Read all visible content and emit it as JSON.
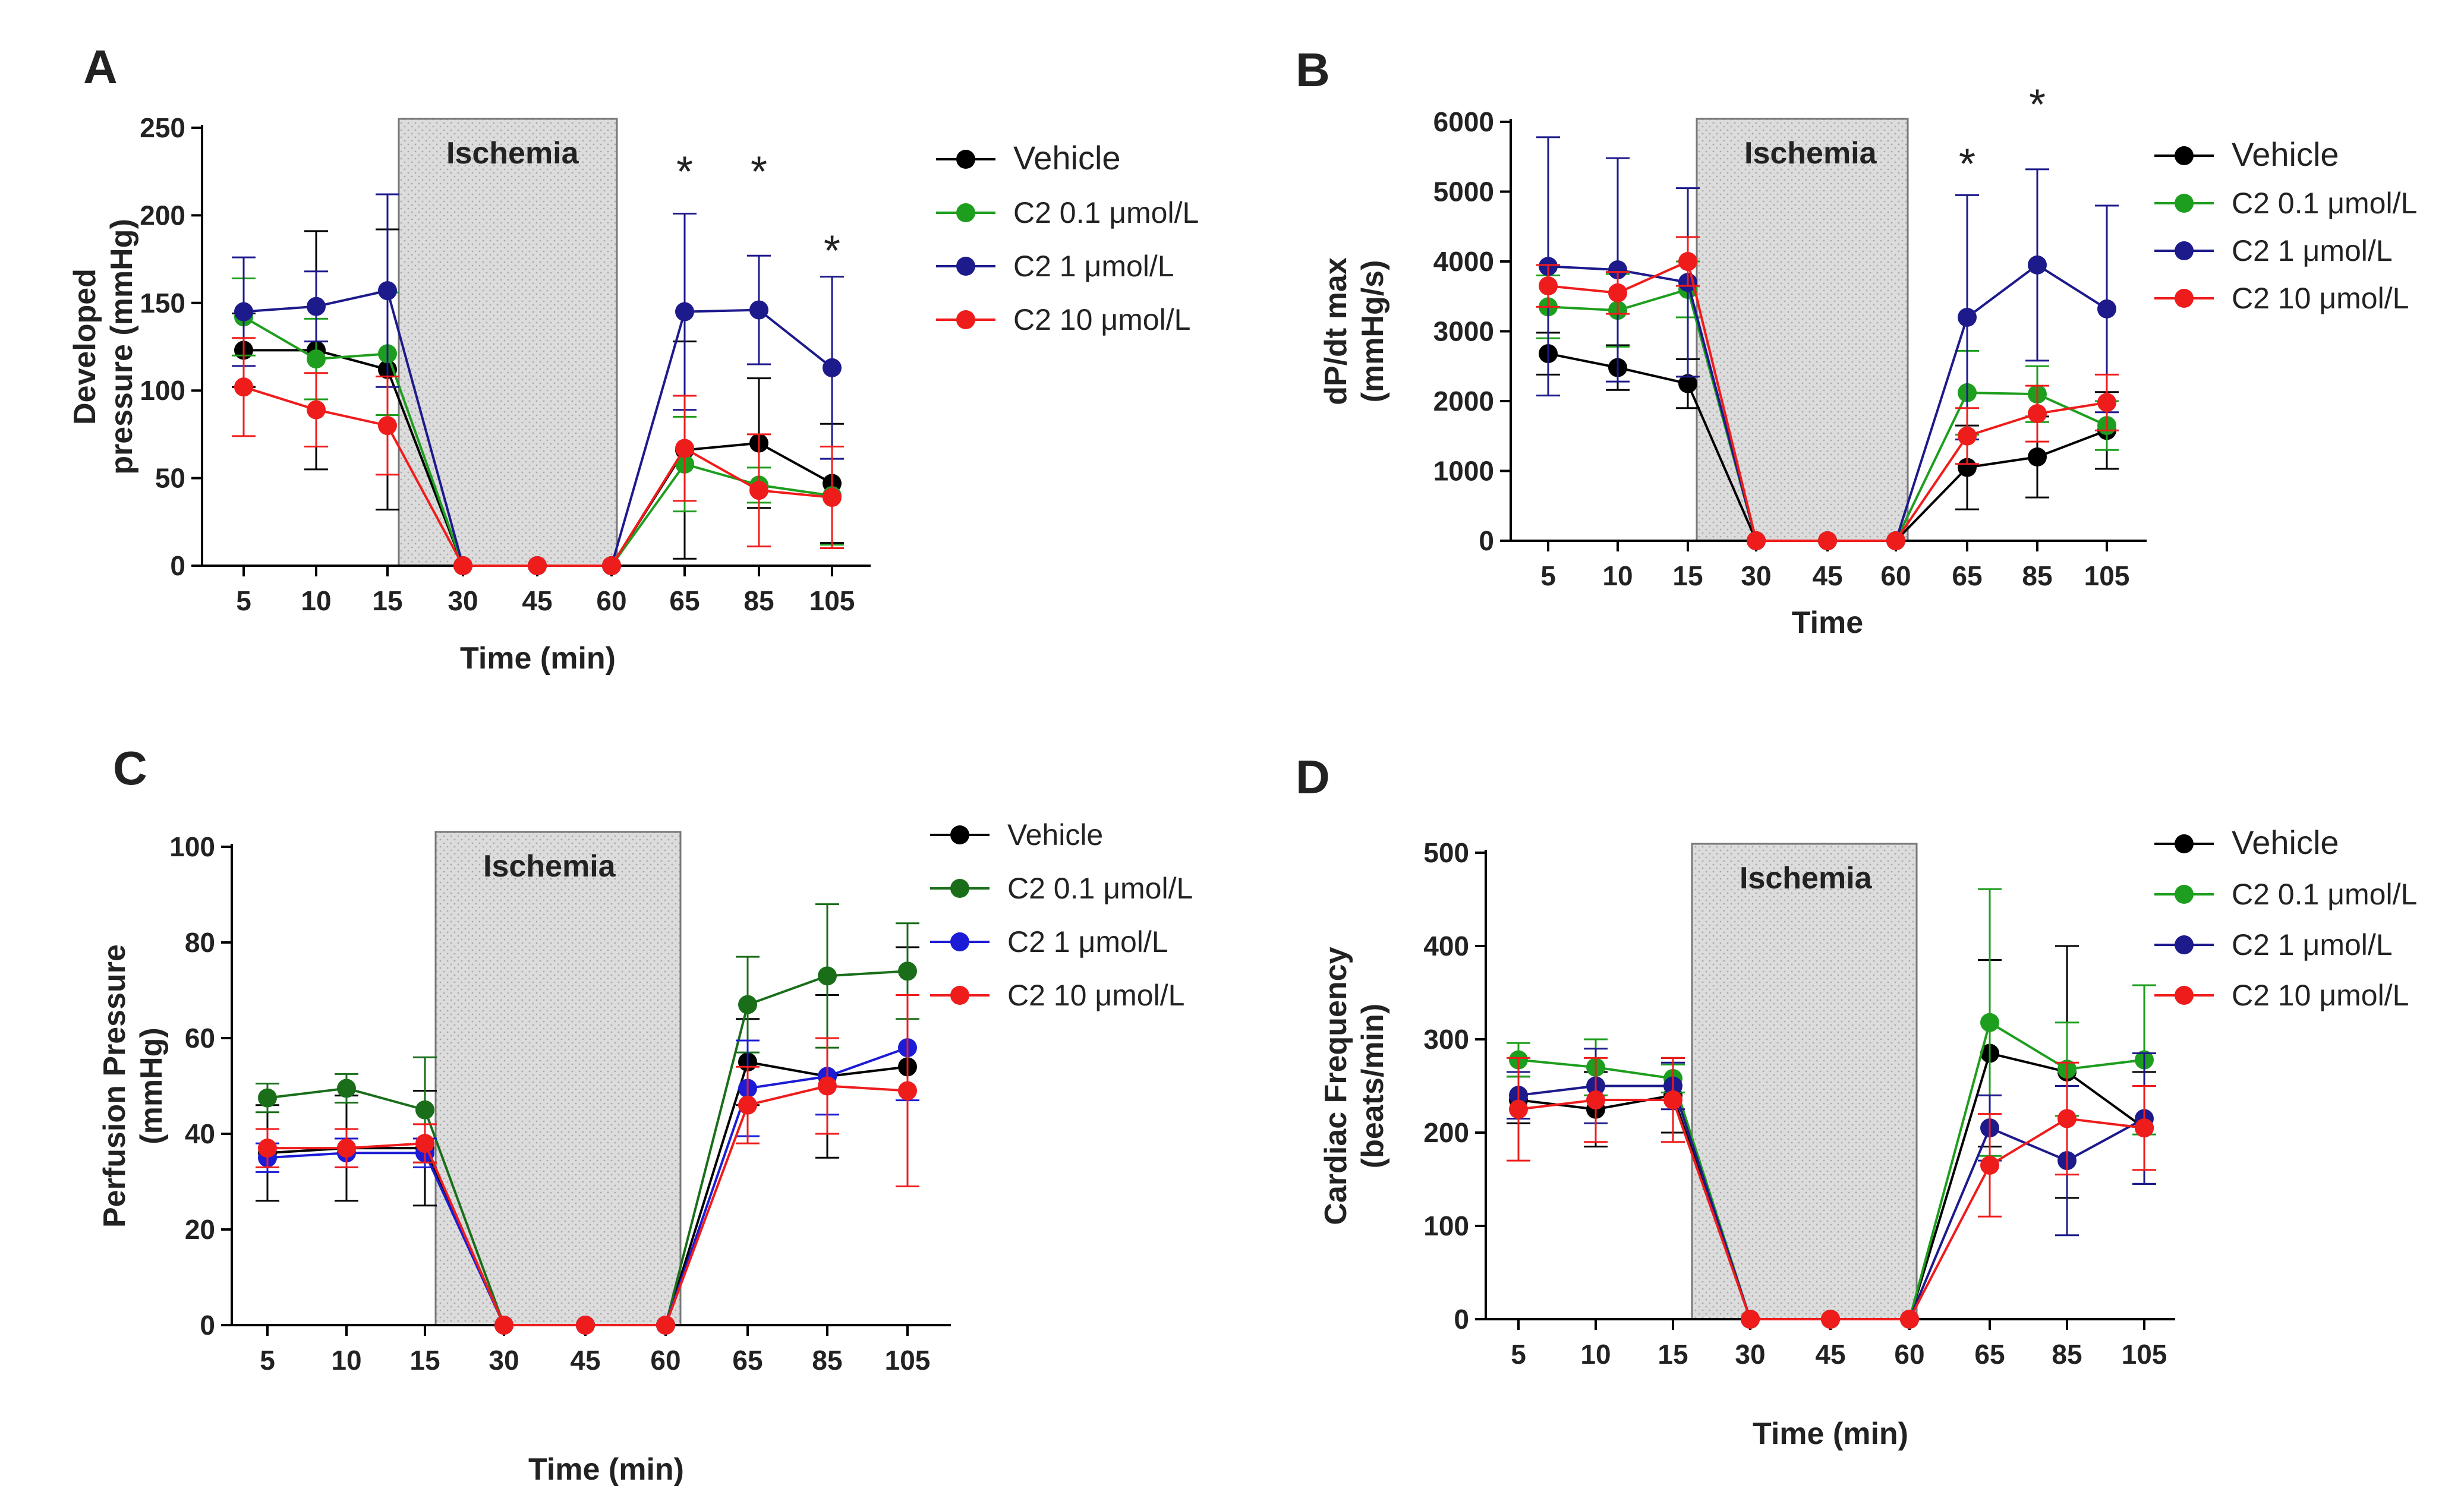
{
  "chart_data": [
    {
      "panel": "A",
      "type": "line",
      "categories": [
        "5",
        "10",
        "15",
        "30",
        "45",
        "60",
        "65",
        "85",
        "105"
      ],
      "ylabel": "Developed pressure (mmHg)",
      "ylabel_lines": [
        "Developed",
        "pressure (mmHg)"
      ],
      "xlabel": "Time (min)",
      "ylim": [
        0,
        250
      ],
      "yticks": [
        0,
        50,
        100,
        150,
        200,
        250
      ],
      "ischemia_label": "Ischemia",
      "ischemia_range": [
        "15",
        "60"
      ],
      "significance": [
        {
          "category": "65",
          "y": 225,
          "label": "*"
        },
        {
          "category": "85",
          "y": 225,
          "label": "*"
        },
        {
          "category": "105",
          "y": 180,
          "label": "*"
        }
      ],
      "series": [
        {
          "name": "Vehicle",
          "color": "#000000",
          "values": [
            123,
            123,
            112,
            0,
            0,
            0,
            66,
            70,
            47
          ],
          "errors": [
            21,
            68,
            80,
            0,
            0,
            0,
            62,
            37,
            34
          ]
        },
        {
          "name": "C2 0.1 μmol/L",
          "color": "#1e9e1e",
          "values": [
            142,
            118,
            121,
            0,
            0,
            0,
            58,
            46,
            40
          ],
          "errors": [
            22,
            23,
            35,
            0,
            0,
            0,
            27,
            10,
            28
          ]
        },
        {
          "name": "C2 1 μmol/L",
          "color": "#1d1a8c",
          "values": [
            145,
            148,
            157,
            0,
            0,
            0,
            145,
            146,
            113
          ],
          "errors": [
            31,
            20,
            55,
            0,
            0,
            0,
            56,
            31,
            52
          ]
        },
        {
          "name": "C2 10 μmol/L",
          "color": "#ef1c1c",
          "values": [
            102,
            89,
            80,
            0,
            0,
            0,
            67,
            43,
            39
          ],
          "errors": [
            28,
            21,
            28,
            0,
            0,
            0,
            30,
            32,
            29
          ]
        }
      ]
    },
    {
      "panel": "B",
      "type": "line",
      "categories": [
        "5",
        "10",
        "15",
        "30",
        "45",
        "60",
        "65",
        "85",
        "105"
      ],
      "ylabel": "dP/dt max (mmHg/s)",
      "ylabel_lines": [
        "dP/dt max",
        "(mmHg/s)"
      ],
      "xlabel": "Time",
      "ylim": [
        0,
        6000
      ],
      "yticks": [
        0,
        1000,
        2000,
        3000,
        4000,
        5000,
        6000
      ],
      "ischemia_label": "Ischemia",
      "ischemia_range": [
        "15",
        "60"
      ],
      "significance": [
        {
          "category": "65",
          "y": 5400,
          "label": "*"
        },
        {
          "category": "85",
          "y": 6250,
          "label": "*"
        }
      ],
      "series": [
        {
          "name": "Vehicle",
          "color": "#000000",
          "values": [
            2680,
            2480,
            2250,
            0,
            0,
            0,
            1050,
            1200,
            1580
          ],
          "errors": [
            300,
            320,
            350,
            0,
            0,
            0,
            600,
            580,
            550
          ]
        },
        {
          "name": "C2 0.1 μmol/L",
          "color": "#1e9e1e",
          "values": [
            3350,
            3300,
            3600,
            0,
            0,
            0,
            2120,
            2100,
            1650
          ],
          "errors": [
            450,
            520,
            400,
            0,
            0,
            0,
            600,
            400,
            350
          ]
        },
        {
          "name": "C2 1 μmol/L",
          "color": "#1d1a8c",
          "values": [
            3930,
            3880,
            3700,
            0,
            0,
            0,
            3200,
            3950,
            3320
          ],
          "errors": [
            1850,
            1600,
            1350,
            0,
            0,
            0,
            1750,
            1370,
            1480
          ]
        },
        {
          "name": "C2 10 μmol/L",
          "color": "#ef1c1c",
          "values": [
            3650,
            3550,
            4000,
            0,
            0,
            0,
            1500,
            1820,
            1980
          ],
          "errors": [
            300,
            300,
            350,
            0,
            0,
            0,
            400,
            400,
            400
          ]
        }
      ]
    },
    {
      "panel": "C",
      "type": "line",
      "categories": [
        "5",
        "10",
        "15",
        "30",
        "45",
        "60",
        "65",
        "85",
        "105"
      ],
      "ylabel": "Perfusion Pressure (mmHg)",
      "ylabel_lines": [
        "Perfusion Pressure",
        "(mmHg)"
      ],
      "xlabel": "Time (min)",
      "ylim": [
        0,
        100
      ],
      "yticks": [
        0,
        20,
        40,
        60,
        80,
        100
      ],
      "ischemia_label": "Ischemia",
      "ischemia_range": [
        "15",
        "60"
      ],
      "significance": [],
      "series": [
        {
          "name": "Vehicle",
          "color": "#000000",
          "values": [
            36,
            37,
            37,
            0,
            0,
            0,
            55,
            52,
            54
          ],
          "errors": [
            10,
            11,
            12,
            0,
            0,
            0,
            9,
            17,
            25
          ]
        },
        {
          "name": "C2 0.1 μmol/L",
          "color": "#1a6e1a",
          "values": [
            47.5,
            49.5,
            45,
            0,
            0,
            0,
            67,
            73,
            74
          ],
          "errors": [
            3,
            3,
            11,
            0,
            0,
            0,
            10,
            15,
            10
          ]
        },
        {
          "name": "C2 1 μmol/L",
          "color": "#1c1cd6",
          "values": [
            35,
            36,
            36,
            0,
            0,
            0,
            49.5,
            52,
            58
          ],
          "errors": [
            3,
            3,
            3,
            0,
            0,
            0,
            10,
            8,
            11
          ]
        },
        {
          "name": "C2 10 μmol/L",
          "color": "#ef1c1c",
          "values": [
            37,
            37,
            38,
            0,
            0,
            0,
            46,
            50,
            49
          ],
          "errors": [
            4,
            4,
            4,
            0,
            0,
            0,
            8,
            10,
            20
          ]
        }
      ]
    },
    {
      "panel": "D",
      "type": "line",
      "categories": [
        "5",
        "10",
        "15",
        "30",
        "45",
        "60",
        "65",
        "85",
        "105"
      ],
      "ylabel": "Cardiac Frequency (beats/min)",
      "ylabel_lines": [
        "Cardiac Frequency",
        "(beats/min)"
      ],
      "xlabel": "Time (min)",
      "ylim": [
        0,
        500
      ],
      "yticks": [
        0,
        100,
        200,
        300,
        400,
        500
      ],
      "ischemia_label": "Ischemia",
      "ischemia_range": [
        "15",
        "60"
      ],
      "significance": [],
      "series": [
        {
          "name": "Vehicle",
          "color": "#000000",
          "values": [
            235,
            225,
            240,
            0,
            0,
            0,
            285,
            265,
            205
          ],
          "errors": [
            25,
            40,
            40,
            0,
            0,
            0,
            100,
            135,
            60
          ]
        },
        {
          "name": "C2 0.1 μmol/L",
          "color": "#1e9e1e",
          "values": [
            278,
            270,
            258,
            0,
            0,
            0,
            318,
            268,
            278
          ],
          "errors": [
            18,
            30,
            15,
            0,
            0,
            0,
            143,
            50,
            80
          ]
        },
        {
          "name": "C2 1 μmol/L",
          "color": "#1d1a8c",
          "values": [
            240,
            250,
            250,
            0,
            0,
            0,
            205,
            170,
            215
          ],
          "errors": [
            25,
            40,
            25,
            0,
            0,
            0,
            35,
            80,
            70
          ]
        },
        {
          "name": "C2 10 μmol/L",
          "color": "#ef1c1c",
          "values": [
            225,
            235,
            235,
            0,
            0,
            0,
            165,
            215,
            205
          ],
          "errors": [
            55,
            45,
            45,
            0,
            0,
            0,
            55,
            60,
            45
          ]
        }
      ]
    }
  ]
}
